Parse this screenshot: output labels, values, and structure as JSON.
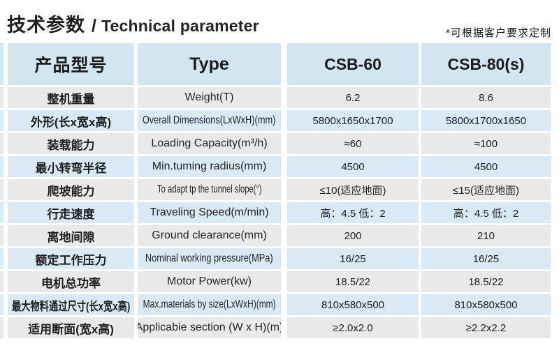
{
  "page": {
    "title_zh": "技术参数",
    "title_sep": "/",
    "title_en": "Technical parameter",
    "note": "*可根据客户要求定制"
  },
  "colors": {
    "header_bg": "#d3e5f1",
    "row_blue": "#d9eaf6",
    "row_gray": "#e9e9e9"
  },
  "table": {
    "header": {
      "col1": "产品型号",
      "col2": "Type",
      "col3": "CSB-60",
      "col4": "CSB-80(s)"
    },
    "rows": [
      {
        "zh": "整机重量",
        "en": "Weight(T)",
        "v1": "6.2",
        "v2": "8.6"
      },
      {
        "zh": "外形(长x宽x高)",
        "en": "Overall Dimensions(LxWxH)(mm)",
        "v1": "5800x1650x1700",
        "v2": "5800x1700x1650"
      },
      {
        "zh": "装载能力",
        "en": "Loading Capacity(m³/h)",
        "v1": "≈60",
        "v2": "≈100"
      },
      {
        "zh": "最小转弯半径",
        "en": "Min.tuming radius(mm)",
        "v1": "4500",
        "v2": "4500"
      },
      {
        "zh": "爬坡能力",
        "en": "To adapt tp the tunnel slope(°)",
        "v1": "≤10(适应地面)",
        "v2": "≤15(适应地面)"
      },
      {
        "zh": "行走速度",
        "en": "Traveling Speed(m/min)",
        "v1": "高：4.5 低：2",
        "v2": "高：4.5 低：2"
      },
      {
        "zh": "离地间隙",
        "en": "Ground clearance(mm)",
        "v1": "200",
        "v2": "210"
      },
      {
        "zh": "额定工作压力",
        "en": "Nominal working pressure(MPa)",
        "v1": "16/25",
        "v2": "16/25"
      },
      {
        "zh": "电机总功率",
        "en": "Motor Power(kw)",
        "v1": "18.5/22",
        "v2": "18.5/22"
      },
      {
        "zh": "最大物料通过尺寸(长x宽x高)",
        "en": "Max.materials by size(LxWxH)(mm)",
        "v1": "810x580x500",
        "v2": "810x580x500"
      },
      {
        "zh": "适用断面(宽x高)",
        "en": "Applicabie section (W x H)(m)",
        "v1": "≥2.0x2.0",
        "v2": "≥2.2x2.2"
      }
    ]
  }
}
